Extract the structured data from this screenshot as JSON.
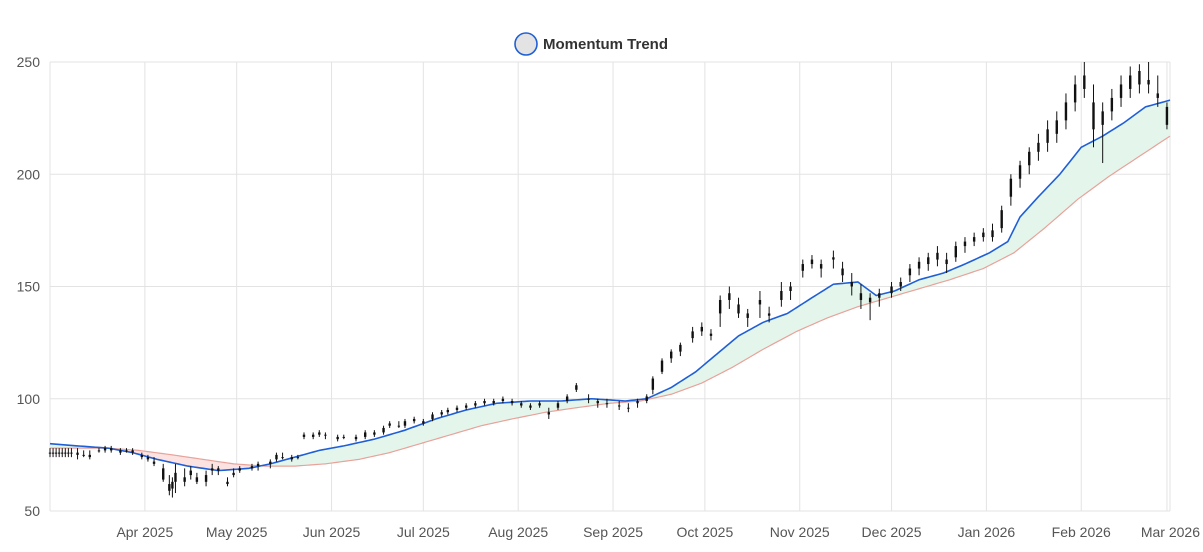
{
  "chart_data": {
    "type": "candlestick",
    "legend": {
      "label": "Momentum Trend",
      "position": "top-center",
      "swatch_fill": "#e3e3e3",
      "swatch_stroke": "#1f5fd6"
    },
    "y_axis": {
      "min": 50,
      "max": 250,
      "ticks": [
        50,
        100,
        150,
        200,
        250
      ]
    },
    "x_axis": {
      "range_start": "2025-03-01",
      "range_end": "2026-03-02",
      "ticks": [
        {
          "date": "2025-04-01",
          "label": "Apr 2025"
        },
        {
          "date": "2025-05-01",
          "label": "May 2025"
        },
        {
          "date": "2025-06-01",
          "label": "Jun 2025"
        },
        {
          "date": "2025-07-01",
          "label": "Jul 2025"
        },
        {
          "date": "2025-08-01",
          "label": "Aug 2025"
        },
        {
          "date": "2025-09-01",
          "label": "Sep 2025"
        },
        {
          "date": "2025-10-01",
          "label": "Oct 2025"
        },
        {
          "date": "2025-11-01",
          "label": "Nov 2025"
        },
        {
          "date": "2025-12-01",
          "label": "Dec 2025"
        },
        {
          "date": "2026-01-01",
          "label": "Jan 2026"
        },
        {
          "date": "2026-02-01",
          "label": "Feb 2026"
        },
        {
          "date": "2026-03-01",
          "label": "Mar 2026"
        }
      ]
    },
    "grid": true,
    "colors": {
      "candle": "#111111",
      "fast_line": "#1f5fd6",
      "slow_line": "#e8a29a",
      "bull_fill": "#e4f6ec",
      "bear_fill": "#fde2e2",
      "grid": "#e3e3e3"
    },
    "series": [
      {
        "id": "fast",
        "points": [
          [
            "2025-03-01",
            80
          ],
          [
            "2025-03-10",
            79
          ],
          [
            "2025-03-20",
            78
          ],
          [
            "2025-03-28",
            76
          ],
          [
            "2025-04-05",
            73
          ],
          [
            "2025-04-15",
            70
          ],
          [
            "2025-04-25",
            68
          ],
          [
            "2025-05-05",
            69
          ],
          [
            "2025-05-12",
            71
          ],
          [
            "2025-05-20",
            74
          ],
          [
            "2025-05-28",
            77
          ],
          [
            "2025-06-05",
            79
          ],
          [
            "2025-06-15",
            82
          ],
          [
            "2025-06-25",
            86
          ],
          [
            "2025-07-05",
            91
          ],
          [
            "2025-07-15",
            95
          ],
          [
            "2025-07-25",
            98
          ],
          [
            "2025-08-05",
            99
          ],
          [
            "2025-08-15",
            99
          ],
          [
            "2025-08-25",
            100
          ],
          [
            "2025-09-05",
            99
          ],
          [
            "2025-09-12",
            100
          ],
          [
            "2025-09-20",
            105
          ],
          [
            "2025-09-28",
            112
          ],
          [
            "2025-10-05",
            120
          ],
          [
            "2025-10-12",
            128
          ],
          [
            "2025-10-20",
            134
          ],
          [
            "2025-10-28",
            138
          ],
          [
            "2025-11-05",
            145
          ],
          [
            "2025-11-12",
            151
          ],
          [
            "2025-11-20",
            152
          ],
          [
            "2025-11-26",
            146
          ],
          [
            "2025-12-02",
            148
          ],
          [
            "2025-12-10",
            153
          ],
          [
            "2025-12-18",
            156
          ],
          [
            "2025-12-25",
            160
          ],
          [
            "2026-01-02",
            165
          ],
          [
            "2026-01-08",
            170
          ],
          [
            "2026-01-12",
            181
          ],
          [
            "2026-01-18",
            190
          ],
          [
            "2026-01-25",
            200
          ],
          [
            "2026-02-01",
            212
          ],
          [
            "2026-02-08",
            217
          ],
          [
            "2026-02-15",
            223
          ],
          [
            "2026-02-22",
            230
          ],
          [
            "2026-03-02",
            233
          ]
        ]
      },
      {
        "id": "slow",
        "points": [
          [
            "2025-03-01",
            78
          ],
          [
            "2025-03-10",
            78
          ],
          [
            "2025-03-20",
            78
          ],
          [
            "2025-03-30",
            77
          ],
          [
            "2025-04-10",
            75
          ],
          [
            "2025-04-20",
            73
          ],
          [
            "2025-04-30",
            71
          ],
          [
            "2025-05-10",
            70
          ],
          [
            "2025-05-20",
            70
          ],
          [
            "2025-05-30",
            71
          ],
          [
            "2025-06-10",
            73
          ],
          [
            "2025-06-20",
            76
          ],
          [
            "2025-06-30",
            80
          ],
          [
            "2025-07-10",
            84
          ],
          [
            "2025-07-20",
            88
          ],
          [
            "2025-07-30",
            91
          ],
          [
            "2025-08-10",
            94
          ],
          [
            "2025-08-20",
            96
          ],
          [
            "2025-08-31",
            98
          ],
          [
            "2025-09-10",
            99
          ],
          [
            "2025-09-20",
            102
          ],
          [
            "2025-09-30",
            107
          ],
          [
            "2025-10-10",
            114
          ],
          [
            "2025-10-20",
            122
          ],
          [
            "2025-10-31",
            130
          ],
          [
            "2025-11-10",
            136
          ],
          [
            "2025-11-20",
            141
          ],
          [
            "2025-11-30",
            145
          ],
          [
            "2025-12-10",
            149
          ],
          [
            "2025-12-20",
            153
          ],
          [
            "2025-12-31",
            158
          ],
          [
            "2026-01-10",
            165
          ],
          [
            "2026-01-20",
            176
          ],
          [
            "2026-01-31",
            189
          ],
          [
            "2026-02-10",
            199
          ],
          [
            "2026-02-20",
            208
          ],
          [
            "2026-03-02",
            217
          ]
        ]
      }
    ],
    "candles": [
      [
        "2025-03-01",
        76,
        78,
        74,
        76
      ],
      [
        "2025-03-02",
        76,
        78,
        74,
        76
      ],
      [
        "2025-03-03",
        76,
        78,
        74,
        76
      ],
      [
        "2025-03-04",
        76,
        78,
        74,
        76
      ],
      [
        "2025-03-05",
        76,
        78,
        74,
        76
      ],
      [
        "2025-03-06",
        76,
        78,
        74,
        76
      ],
      [
        "2025-03-07",
        76,
        78,
        74,
        76
      ],
      [
        "2025-03-08",
        76,
        78,
        74,
        76
      ],
      [
        "2025-03-10",
        75,
        78,
        73,
        76
      ],
      [
        "2025-03-12",
        75,
        77,
        74,
        75
      ],
      [
        "2025-03-14",
        75,
        77,
        73,
        74
      ],
      [
        "2025-03-17",
        77,
        78,
        76,
        77
      ],
      [
        "2025-03-19",
        77,
        79,
        76,
        78
      ],
      [
        "2025-03-21",
        78,
        79,
        76,
        77
      ],
      [
        "2025-03-24",
        77,
        78,
        75,
        76
      ],
      [
        "2025-03-26",
        77,
        78,
        76,
        77
      ],
      [
        "2025-03-28",
        77,
        78,
        75,
        76
      ],
      [
        "2025-03-31",
        75,
        76,
        73,
        74
      ],
      [
        "2025-04-02",
        74,
        75,
        72,
        73
      ],
      [
        "2025-04-04",
        72,
        74,
        70,
        71
      ],
      [
        "2025-04-07",
        69,
        71,
        63,
        64
      ],
      [
        "2025-04-09",
        62,
        66,
        57,
        59
      ],
      [
        "2025-04-10",
        60,
        65,
        56,
        63
      ],
      [
        "2025-04-11",
        63,
        71,
        58,
        67
      ],
      [
        "2025-04-14",
        65,
        69,
        61,
        63
      ],
      [
        "2025-04-16",
        66,
        70,
        64,
        68
      ],
      [
        "2025-04-18",
        65,
        67,
        62,
        63
      ],
      [
        "2025-04-21",
        63,
        68,
        61,
        66
      ],
      [
        "2025-04-23",
        68,
        71,
        66,
        69
      ],
      [
        "2025-04-25",
        68,
        70,
        66,
        69
      ],
      [
        "2025-04-28",
        63,
        65,
        61,
        62
      ],
      [
        "2025-04-30",
        67,
        69,
        65,
        66
      ],
      [
        "2025-05-02",
        68,
        70,
        67,
        69
      ],
      [
        "2025-05-06",
        69,
        71,
        68,
        70
      ],
      [
        "2025-05-08",
        70,
        72,
        68,
        71
      ],
      [
        "2025-05-12",
        71,
        73,
        69,
        72
      ],
      [
        "2025-05-14",
        73,
        76,
        72,
        75
      ],
      [
        "2025-05-16",
        74,
        76,
        73,
        74
      ],
      [
        "2025-05-19",
        73,
        75,
        72,
        74
      ],
      [
        "2025-05-21",
        74,
        75,
        73,
        74
      ],
      [
        "2025-05-23",
        83,
        85,
        82,
        84
      ],
      [
        "2025-05-26",
        84,
        85,
        82,
        83
      ],
      [
        "2025-05-28",
        84,
        86,
        83,
        85
      ],
      [
        "2025-05-30",
        84,
        85,
        82,
        84
      ],
      [
        "2025-06-03",
        82,
        84,
        81,
        83
      ],
      [
        "2025-06-05",
        83,
        84,
        82,
        83
      ],
      [
        "2025-06-09",
        82,
        84,
        81,
        83
      ],
      [
        "2025-06-12",
        83,
        86,
        82,
        85
      ],
      [
        "2025-06-15",
        84,
        86,
        83,
        85
      ],
      [
        "2025-06-18",
        85,
        88,
        84,
        87
      ],
      [
        "2025-06-20",
        88,
        90,
        87,
        89
      ],
      [
        "2025-06-23",
        88,
        90,
        87,
        88
      ],
      [
        "2025-06-25",
        88,
        91,
        87,
        90
      ],
      [
        "2025-06-28",
        90,
        92,
        89,
        91
      ],
      [
        "2025-07-01",
        89,
        91,
        88,
        90
      ],
      [
        "2025-07-04",
        91,
        94,
        90,
        93
      ],
      [
        "2025-07-07",
        93,
        95,
        92,
        94
      ],
      [
        "2025-07-09",
        94,
        96,
        93,
        95
      ],
      [
        "2025-07-12",
        95,
        97,
        94,
        96
      ],
      [
        "2025-07-15",
        96,
        98,
        95,
        97
      ],
      [
        "2025-07-18",
        97,
        99,
        96,
        98
      ],
      [
        "2025-07-21",
        98,
        100,
        97,
        99
      ],
      [
        "2025-07-24",
        98,
        100,
        97,
        99
      ],
      [
        "2025-07-27",
        99,
        101,
        98,
        100
      ],
      [
        "2025-07-30",
        98,
        100,
        97,
        99
      ],
      [
        "2025-08-02",
        97,
        99,
        96,
        98
      ],
      [
        "2025-08-05",
        96,
        98,
        95,
        97
      ],
      [
        "2025-08-08",
        97,
        99,
        96,
        98
      ],
      [
        "2025-08-11",
        94,
        96,
        91,
        93
      ],
      [
        "2025-08-14",
        96,
        99,
        95,
        98
      ],
      [
        "2025-08-17",
        99,
        102,
        98,
        101
      ],
      [
        "2025-08-20",
        104,
        107,
        103,
        106
      ],
      [
        "2025-08-24",
        100,
        102,
        98,
        100
      ],
      [
        "2025-08-27",
        98,
        100,
        96,
        99
      ],
      [
        "2025-08-30",
        98,
        100,
        96,
        98
      ],
      [
        "2025-09-03",
        97,
        99,
        95,
        97
      ],
      [
        "2025-09-06",
        96,
        98,
        94,
        96
      ],
      [
        "2025-09-09",
        98,
        100,
        96,
        99
      ],
      [
        "2025-09-12",
        99,
        102,
        98,
        101
      ],
      [
        "2025-09-14",
        104,
        110,
        102,
        109
      ],
      [
        "2025-09-17",
        112,
        118,
        111,
        117
      ],
      [
        "2025-09-20",
        118,
        122,
        116,
        121
      ],
      [
        "2025-09-23",
        121,
        125,
        119,
        124
      ],
      [
        "2025-09-27",
        127,
        132,
        125,
        130
      ],
      [
        "2025-09-30",
        130,
        134,
        128,
        132
      ],
      [
        "2025-10-03",
        128,
        131,
        126,
        129
      ],
      [
        "2025-10-06",
        138,
        146,
        132,
        144
      ],
      [
        "2025-10-09",
        144,
        150,
        140,
        147
      ],
      [
        "2025-10-12",
        142,
        145,
        136,
        138
      ],
      [
        "2025-10-15",
        136,
        140,
        132,
        138
      ],
      [
        "2025-10-19",
        142,
        148,
        136,
        144
      ],
      [
        "2025-10-22",
        138,
        141,
        134,
        137
      ],
      [
        "2025-10-26",
        144,
        152,
        141,
        148
      ],
      [
        "2025-10-29",
        148,
        152,
        144,
        150
      ],
      [
        "2025-11-02",
        157,
        162,
        154,
        160
      ],
      [
        "2025-11-05",
        160,
        164,
        158,
        162
      ],
      [
        "2025-11-08",
        158,
        162,
        154,
        160
      ],
      [
        "2025-11-12",
        162,
        166,
        158,
        163
      ],
      [
        "2025-11-15",
        158,
        161,
        152,
        155
      ],
      [
        "2025-11-18",
        152,
        156,
        146,
        150
      ],
      [
        "2025-11-21",
        147,
        151,
        140,
        144
      ],
      [
        "2025-11-24",
        143,
        147,
        135,
        145
      ],
      [
        "2025-11-27",
        145,
        149,
        141,
        147
      ],
      [
        "2025-12-01",
        147,
        152,
        145,
        150
      ],
      [
        "2025-12-04",
        150,
        154,
        148,
        152
      ],
      [
        "2025-12-07",
        155,
        160,
        152,
        158
      ],
      [
        "2025-12-10",
        158,
        163,
        155,
        161
      ],
      [
        "2025-12-13",
        160,
        165,
        157,
        163
      ],
      [
        "2025-12-16",
        162,
        168,
        159,
        165
      ],
      [
        "2025-12-19",
        160,
        165,
        156,
        162
      ],
      [
        "2025-12-22",
        163,
        170,
        161,
        168
      ],
      [
        "2025-12-25",
        168,
        172,
        165,
        170
      ],
      [
        "2025-12-28",
        170,
        174,
        168,
        172
      ],
      [
        "2025-12-31",
        172,
        176,
        170,
        174
      ],
      [
        "2026-01-03",
        172,
        178,
        170,
        175
      ],
      [
        "2026-01-06",
        176,
        186,
        174,
        184
      ],
      [
        "2026-01-09",
        190,
        200,
        186,
        198
      ],
      [
        "2026-01-12",
        198,
        206,
        194,
        204
      ],
      [
        "2026-01-15",
        204,
        212,
        200,
        210
      ],
      [
        "2026-01-18",
        210,
        218,
        206,
        214
      ],
      [
        "2026-01-21",
        214,
        224,
        210,
        220
      ],
      [
        "2026-01-24",
        218,
        228,
        214,
        224
      ],
      [
        "2026-01-27",
        224,
        236,
        220,
        232
      ],
      [
        "2026-01-30",
        232,
        244,
        228,
        240
      ],
      [
        "2026-02-02",
        238,
        250,
        234,
        244
      ],
      [
        "2026-02-05",
        232,
        240,
        212,
        220
      ],
      [
        "2026-02-08",
        222,
        232,
        205,
        228
      ],
      [
        "2026-02-11",
        228,
        238,
        224,
        234
      ],
      [
        "2026-02-14",
        234,
        244,
        230,
        240
      ],
      [
        "2026-02-17",
        238,
        248,
        234,
        244
      ],
      [
        "2026-02-20",
        240,
        249,
        236,
        246
      ],
      [
        "2026-02-23",
        242,
        250,
        236,
        240
      ],
      [
        "2026-02-26",
        236,
        244,
        230,
        234
      ],
      [
        "2026-03-01",
        230,
        232,
        220,
        222
      ]
    ]
  }
}
